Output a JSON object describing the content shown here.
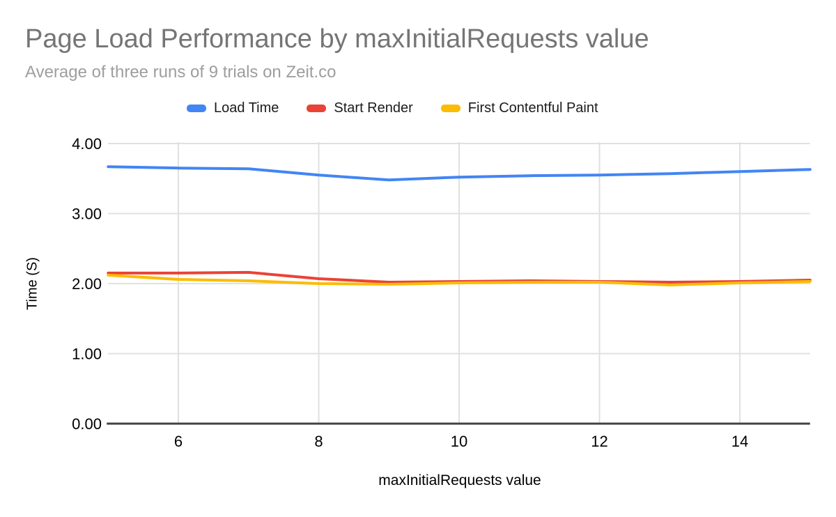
{
  "header": {
    "title": "Page Load Performance by maxInitialRequests value",
    "subtitle": "Average of three runs of 9 trials on Zeit.co"
  },
  "chart_data": {
    "type": "line",
    "title": "Page Load Performance by maxInitialRequests value",
    "subtitle": "Average of three runs of 9 trials on Zeit.co",
    "xlabel": "maxInitialRequests value",
    "ylabel": "Time (S)",
    "xlim": [
      5,
      15
    ],
    "ylim": [
      0,
      4
    ],
    "grid": true,
    "legend_position": "top",
    "x": [
      5,
      6,
      7,
      8,
      9,
      10,
      11,
      12,
      13,
      14,
      15
    ],
    "xticks": [
      {
        "value": 6,
        "label": "6"
      },
      {
        "value": 8,
        "label": "8"
      },
      {
        "value": 10,
        "label": "10"
      },
      {
        "value": 12,
        "label": "12"
      },
      {
        "value": 14,
        "label": "14"
      }
    ],
    "yticks": [
      {
        "value": 0,
        "label": "0.00"
      },
      {
        "value": 1,
        "label": "1.00"
      },
      {
        "value": 2,
        "label": "2.00"
      },
      {
        "value": 3,
        "label": "3.00"
      },
      {
        "value": 4,
        "label": "4.00"
      }
    ],
    "series": [
      {
        "name": "Load Time",
        "color": "#4285f4",
        "values": [
          3.67,
          3.65,
          3.64,
          3.55,
          3.48,
          3.52,
          3.54,
          3.55,
          3.57,
          3.6,
          3.63
        ]
      },
      {
        "name": "Start Render",
        "color": "#ea4335",
        "values": [
          2.15,
          2.15,
          2.16,
          2.07,
          2.02,
          2.03,
          2.04,
          2.03,
          2.02,
          2.03,
          2.05
        ]
      },
      {
        "name": "First Contentful Paint",
        "color": "#fbbc04",
        "values": [
          2.12,
          2.06,
          2.04,
          2.0,
          1.99,
          2.01,
          2.02,
          2.02,
          1.98,
          2.01,
          2.03
        ]
      }
    ],
    "style": {
      "gridline_color": "#e0e0e0",
      "baseline_color": "#424242",
      "tick_label_color": "#000000"
    }
  }
}
